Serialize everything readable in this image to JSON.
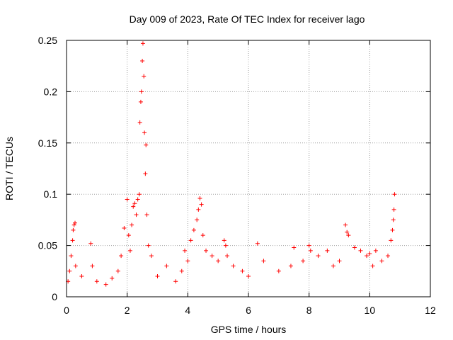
{
  "chart_data": {
    "type": "scatter",
    "title": "Day 009 of 2023, Rate Of TEC Index for receiver lago",
    "xlabel": "GPS time / hours",
    "ylabel": "ROTI / TECUs",
    "xlim": [
      0,
      12
    ],
    "ylim": [
      0,
      0.25
    ],
    "xticks": [
      0,
      2,
      4,
      6,
      8,
      10,
      12
    ],
    "yticks": [
      0,
      0.05,
      0.1,
      0.15,
      0.2,
      0.25
    ],
    "xtick_labels": [
      "0",
      "2",
      "4",
      "6",
      "8",
      "10",
      "12"
    ],
    "ytick_labels": [
      "0",
      "0.05",
      "0.1",
      "0.15",
      "0.2",
      "0.25"
    ],
    "grid": true,
    "marker": "+",
    "color": "#ff0000",
    "series": [
      {
        "name": "ROTI",
        "x": [
          0.05,
          0.1,
          0.15,
          0.2,
          0.22,
          0.25,
          0.28,
          0.3,
          0.5,
          0.8,
          0.85,
          1.0,
          1.3,
          1.5,
          1.7,
          1.8,
          1.9,
          2.0,
          2.05,
          2.1,
          2.15,
          2.2,
          2.25,
          2.3,
          2.35,
          2.4,
          2.42,
          2.45,
          2.47,
          2.5,
          2.52,
          2.55,
          2.57,
          2.6,
          2.62,
          2.65,
          2.7,
          2.8,
          3.0,
          3.3,
          3.6,
          3.8,
          3.9,
          4.0,
          4.1,
          4.2,
          4.3,
          4.35,
          4.4,
          4.45,
          4.5,
          4.6,
          4.8,
          5.0,
          5.2,
          5.25,
          5.3,
          5.5,
          5.8,
          6.0,
          6.3,
          6.5,
          7.0,
          7.4,
          7.5,
          7.8,
          8.0,
          8.05,
          8.3,
          8.6,
          8.8,
          9.0,
          9.2,
          9.25,
          9.3,
          9.5,
          9.7,
          9.9,
          10.0,
          10.1,
          10.2,
          10.4,
          10.6,
          10.7,
          10.75,
          10.78,
          10.8,
          10.82
        ],
        "y": [
          0.015,
          0.025,
          0.04,
          0.055,
          0.065,
          0.07,
          0.072,
          0.03,
          0.02,
          0.052,
          0.03,
          0.015,
          0.012,
          0.018,
          0.025,
          0.04,
          0.067,
          0.095,
          0.06,
          0.045,
          0.07,
          0.088,
          0.091,
          0.08,
          0.095,
          0.1,
          0.17,
          0.19,
          0.2,
          0.23,
          0.247,
          0.215,
          0.16,
          0.12,
          0.148,
          0.08,
          0.05,
          0.04,
          0.02,
          0.03,
          0.015,
          0.025,
          0.045,
          0.035,
          0.055,
          0.065,
          0.075,
          0.085,
          0.096,
          0.09,
          0.06,
          0.045,
          0.04,
          0.035,
          0.055,
          0.05,
          0.04,
          0.03,
          0.025,
          0.02,
          0.052,
          0.035,
          0.025,
          0.03,
          0.048,
          0.035,
          0.05,
          0.045,
          0.04,
          0.045,
          0.03,
          0.035,
          0.07,
          0.063,
          0.06,
          0.048,
          0.045,
          0.04,
          0.042,
          0.03,
          0.045,
          0.035,
          0.04,
          0.055,
          0.065,
          0.075,
          0.085,
          0.1
        ]
      }
    ]
  }
}
